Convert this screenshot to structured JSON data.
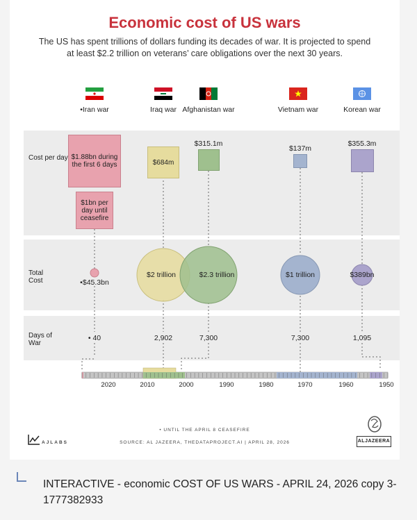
{
  "header": {
    "title": "Economic cost of US wars",
    "subtitle": "The US has spent trillions of dollars funding its decades of war. It is projected to spend at least $2.2 trillion on veterans’ care obligations over the next 30 years."
  },
  "row_labels": {
    "cost": "Cost per day",
    "total": "Total Cost",
    "days": "Days of War"
  },
  "chart_data": {
    "type": "table",
    "wars": [
      {
        "name": "•Iran war",
        "cost_per_day": "$1.88bn during the first 6 days",
        "cost_per_day_2": "$1bn per day until ceasefire",
        "total_cost": "•$45.3bn",
        "days": "• 40",
        "color": "#e8a2ae"
      },
      {
        "name": "Iraq war",
        "cost_per_day": "$684m",
        "total_cost": "$2 trillion",
        "days": "2,902",
        "color": "#e6dc9e"
      },
      {
        "name": "Afghanistan war",
        "cost_per_day": "$315.1m",
        "total_cost": "$2.3 trillion",
        "days": "7,300",
        "color": "#9fc08e"
      },
      {
        "name": "Vietnam war",
        "cost_per_day": "$137m",
        "total_cost": "$1 trillion",
        "days": "7,300",
        "color": "#a4b4cf"
      },
      {
        "name": "Korean war",
        "cost_per_day": "$355.3m",
        "total_cost": "$389bn",
        "days": "1,095",
        "color": "#aba4cc"
      }
    ],
    "timeline_years": [
      "2020",
      "2010",
      "2000",
      "1990",
      "1980",
      "1970",
      "1960",
      "1950"
    ]
  },
  "footer": {
    "note": "• UNTIL THE APRIL 8 CEASEFIRE",
    "source": "SOURCE: AL JAZEERA, THEDATAPROJECT.AI | APRIL 28, 2026",
    "logo_left": "AJLABS",
    "logo_right": "ALJAZEERA"
  },
  "caption": "INTERACTIVE - economic COST OF US WARS - APRIL 24, 2026 copy 3-1777382933"
}
